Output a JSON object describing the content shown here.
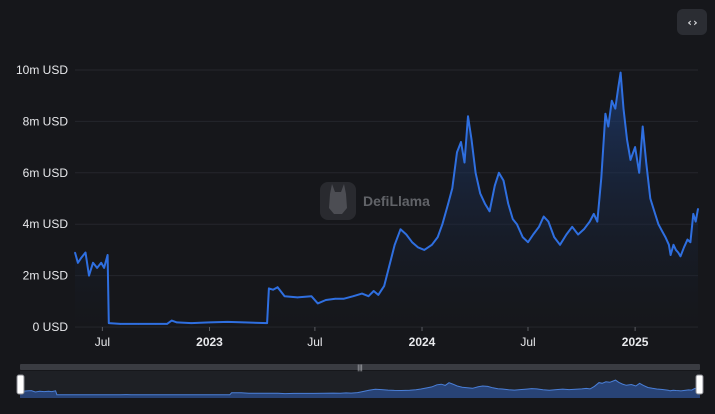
{
  "toolbar": {
    "embed_icon": "code-icon",
    "embed_glyph": "‹›"
  },
  "watermark": {
    "text": "DefiLlama",
    "icon": "llama-logo-icon"
  },
  "colors": {
    "background": "#16171b",
    "line": "#2f6fe0",
    "grid": "#25272d",
    "axis_text": "#e8e9ec",
    "slider_track": "#2f3238",
    "slider_fill": "#2a4a85"
  },
  "chart_data": {
    "type": "area",
    "title": "",
    "xlabel": "",
    "ylabel": "",
    "y_unit": "USD",
    "ylim": [
      0,
      10
    ],
    "y_ticks": [
      {
        "value": 0,
        "label": "0 USD"
      },
      {
        "value": 2,
        "label": "2m USD"
      },
      {
        "value": 4,
        "label": "4m USD"
      },
      {
        "value": 6,
        "label": "6m USD"
      },
      {
        "value": 8,
        "label": "8m USD"
      },
      {
        "value": 10,
        "label": "10m USD"
      }
    ],
    "x_range": [
      "2022-05-15",
      "2025-03-20"
    ],
    "x_ticks": [
      {
        "date": "2022-07-01",
        "label": "Jul",
        "bold": false
      },
      {
        "date": "2023-01-01",
        "label": "2023",
        "bold": true
      },
      {
        "date": "2023-07-01",
        "label": "Jul",
        "bold": false
      },
      {
        "date": "2024-01-01",
        "label": "2024",
        "bold": true
      },
      {
        "date": "2024-07-01",
        "label": "Jul",
        "bold": false
      },
      {
        "date": "2025-01-01",
        "label": "2025",
        "bold": true
      }
    ],
    "grid": true,
    "legend": "none",
    "has_range_slider": true,
    "series": [
      {
        "points": [
          [
            "2022-05-15",
            2.9
          ],
          [
            "2022-05-20",
            2.5
          ],
          [
            "2022-05-26",
            2.7
          ],
          [
            "2022-06-02",
            2.9
          ],
          [
            "2022-06-08",
            2.0
          ],
          [
            "2022-06-15",
            2.5
          ],
          [
            "2022-06-22",
            2.3
          ],
          [
            "2022-06-29",
            2.5
          ],
          [
            "2022-07-04",
            2.3
          ],
          [
            "2022-07-10",
            2.8
          ],
          [
            "2022-07-12",
            0.15
          ],
          [
            "2022-08-01",
            0.12
          ],
          [
            "2022-09-01",
            0.12
          ],
          [
            "2022-10-01",
            0.12
          ],
          [
            "2022-10-20",
            0.12
          ],
          [
            "2022-10-28",
            0.25
          ],
          [
            "2022-11-06",
            0.18
          ],
          [
            "2022-12-01",
            0.15
          ],
          [
            "2023-01-01",
            0.18
          ],
          [
            "2023-02-01",
            0.2
          ],
          [
            "2023-03-01",
            0.18
          ],
          [
            "2023-04-10",
            0.15
          ],
          [
            "2023-04-13",
            1.5
          ],
          [
            "2023-04-20",
            1.45
          ],
          [
            "2023-04-28",
            1.55
          ],
          [
            "2023-05-10",
            1.2
          ],
          [
            "2023-06-01",
            1.15
          ],
          [
            "2023-06-25",
            1.2
          ],
          [
            "2023-07-06",
            0.92
          ],
          [
            "2023-07-20",
            1.05
          ],
          [
            "2023-08-05",
            1.1
          ],
          [
            "2023-08-20",
            1.1
          ],
          [
            "2023-09-05",
            1.2
          ],
          [
            "2023-09-20",
            1.3
          ],
          [
            "2023-10-01",
            1.2
          ],
          [
            "2023-10-10",
            1.4
          ],
          [
            "2023-10-18",
            1.25
          ],
          [
            "2023-10-28",
            1.6
          ],
          [
            "2023-11-05",
            2.3
          ],
          [
            "2023-11-15",
            3.2
          ],
          [
            "2023-11-25",
            3.8
          ],
          [
            "2023-12-05",
            3.6
          ],
          [
            "2023-12-15",
            3.3
          ],
          [
            "2023-12-25",
            3.1
          ],
          [
            "2024-01-05",
            3.0
          ],
          [
            "2024-01-18",
            3.2
          ],
          [
            "2024-01-28",
            3.5
          ],
          [
            "2024-02-05",
            4.0
          ],
          [
            "2024-02-15",
            4.8
          ],
          [
            "2024-02-22",
            5.4
          ],
          [
            "2024-03-01",
            6.8
          ],
          [
            "2024-03-08",
            7.2
          ],
          [
            "2024-03-14",
            6.4
          ],
          [
            "2024-03-20",
            8.2
          ],
          [
            "2024-03-26",
            7.3
          ],
          [
            "2024-04-02",
            6.0
          ],
          [
            "2024-04-10",
            5.2
          ],
          [
            "2024-04-18",
            4.8
          ],
          [
            "2024-04-26",
            4.5
          ],
          [
            "2024-05-05",
            5.5
          ],
          [
            "2024-05-12",
            6.0
          ],
          [
            "2024-05-20",
            5.7
          ],
          [
            "2024-05-28",
            4.8
          ],
          [
            "2024-06-05",
            4.2
          ],
          [
            "2024-06-12",
            4.0
          ],
          [
            "2024-06-22",
            3.5
          ],
          [
            "2024-07-01",
            3.3
          ],
          [
            "2024-07-10",
            3.6
          ],
          [
            "2024-07-20",
            3.9
          ],
          [
            "2024-07-28",
            4.3
          ],
          [
            "2024-08-05",
            4.1
          ],
          [
            "2024-08-15",
            3.5
          ],
          [
            "2024-08-25",
            3.2
          ],
          [
            "2024-09-05",
            3.6
          ],
          [
            "2024-09-15",
            3.9
          ],
          [
            "2024-09-25",
            3.6
          ],
          [
            "2024-10-05",
            3.8
          ],
          [
            "2024-10-15",
            4.1
          ],
          [
            "2024-10-22",
            4.4
          ],
          [
            "2024-10-28",
            4.1
          ],
          [
            "2024-11-04",
            5.8
          ],
          [
            "2024-11-11",
            8.3
          ],
          [
            "2024-11-16",
            7.8
          ],
          [
            "2024-11-22",
            8.8
          ],
          [
            "2024-11-28",
            8.5
          ],
          [
            "2024-12-03",
            9.3
          ],
          [
            "2024-12-07",
            9.9
          ],
          [
            "2024-12-12",
            8.5
          ],
          [
            "2024-12-18",
            7.3
          ],
          [
            "2024-12-24",
            6.5
          ],
          [
            "2025-01-01",
            7.0
          ],
          [
            "2025-01-08",
            6.0
          ],
          [
            "2025-01-14",
            7.8
          ],
          [
            "2025-01-20",
            6.4
          ],
          [
            "2025-01-27",
            5.0
          ],
          [
            "2025-02-03",
            4.5
          ],
          [
            "2025-02-10",
            4.0
          ],
          [
            "2025-02-17",
            3.7
          ],
          [
            "2025-02-22",
            3.5
          ],
          [
            "2025-02-28",
            3.2
          ],
          [
            "2025-03-03",
            2.8
          ],
          [
            "2025-03-08",
            3.2
          ],
          [
            "2025-03-12",
            3.0
          ],
          [
            "2025-03-16",
            2.9
          ],
          [
            "2025-03-20",
            2.75
          ],
          [
            "2025-03-26",
            3.1
          ],
          [
            "2025-04-01",
            3.4
          ],
          [
            "2025-04-06",
            3.3
          ],
          [
            "2025-04-11",
            4.4
          ],
          [
            "2025-04-15",
            4.1
          ],
          [
            "2025-04-19",
            4.6
          ]
        ]
      }
    ]
  }
}
